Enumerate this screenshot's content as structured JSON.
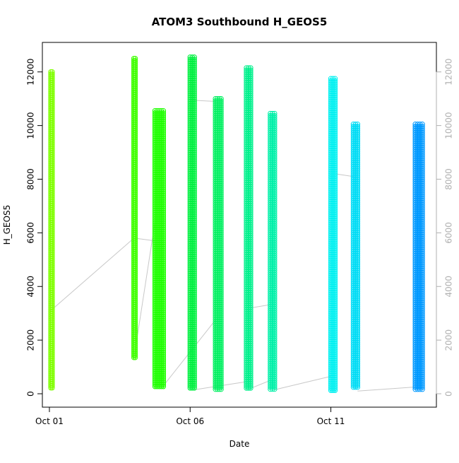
{
  "chart_data": {
    "type": "scatter",
    "title": "ATOM3 Southbound H_GEOS5",
    "xlabel": "Date",
    "ylabel": "H_GEOS5",
    "x_ticks": [
      {
        "label": "Oct 01",
        "value": 1
      },
      {
        "label": "Oct 06",
        "value": 6
      },
      {
        "label": "Oct 11",
        "value": 11
      }
    ],
    "xlim": [
      0.75,
      14.75
    ],
    "y_ticks": [
      0,
      2000,
      4000,
      6000,
      8000,
      10000,
      12000
    ],
    "ylim": [
      -500,
      13100
    ],
    "right_axis": {
      "ticks": [
        0,
        2000,
        4000,
        6000,
        8000,
        10000,
        12000
      ],
      "color": "#b0b0b0"
    },
    "grid": false,
    "legend": "none",
    "connector_color": "#c8c8c8",
    "series": [
      {
        "x": 1.05,
        "x_end": 1.1,
        "y_min": 150,
        "y_max": 12000,
        "color": "#7FFF00"
      },
      {
        "x": 4.0,
        "x_end": 4.05,
        "y_min": 1300,
        "y_max": 12500,
        "color": "#3FFF00"
      },
      {
        "x": 4.75,
        "x_end": 5.05,
        "y_min": 200,
        "y_max": 10550,
        "color": "#1FFF00"
      },
      {
        "x": 6.0,
        "x_end": 6.15,
        "y_min": 150,
        "y_max": 12550,
        "color": "#00F040"
      },
      {
        "x": 6.9,
        "x_end": 7.1,
        "y_min": 150,
        "y_max": 11000,
        "color": "#00F060"
      },
      {
        "x": 8.0,
        "x_end": 8.15,
        "y_min": 150,
        "y_max": 12150,
        "color": "#00F08C"
      },
      {
        "x": 8.85,
        "x_end": 9.0,
        "y_min": 150,
        "y_max": 10450,
        "color": "#00F0A8"
      },
      {
        "x": 11.0,
        "x_end": 11.15,
        "y_min": 50,
        "y_max": 11750,
        "color": "#00F0F0"
      },
      {
        "x": 11.8,
        "x_end": 11.95,
        "y_min": 200,
        "y_max": 10050,
        "color": "#00DCF5"
      },
      {
        "x": 14.0,
        "x_end": 14.25,
        "y_min": 150,
        "y_max": 10050,
        "color": "#0099FF"
      }
    ],
    "connector_lines": [
      {
        "x": [
          1.05,
          4.0
        ],
        "y": [
          3100,
          5800
        ]
      },
      {
        "x": [
          4.05,
          4.75
        ],
        "y": [
          5800,
          5700
        ]
      },
      {
        "x": [
          4.0,
          4.75
        ],
        "y": [
          1300,
          6400
        ]
      },
      {
        "x": [
          5.05,
          6.9
        ],
        "y": [
          300,
          2750
        ]
      },
      {
        "x": [
          6.0,
          6.9
        ],
        "y": [
          10950,
          10900
        ]
      },
      {
        "x": [
          6.15,
          8.0
        ],
        "y": [
          150,
          450
        ]
      },
      {
        "x": [
          8.15,
          8.85
        ],
        "y": [
          200,
          500
        ]
      },
      {
        "x": [
          8.15,
          9.0
        ],
        "y": [
          3200,
          3350
        ]
      },
      {
        "x": [
          9.0,
          11.0
        ],
        "y": [
          150,
          650
        ]
      },
      {
        "x": [
          11.15,
          11.8
        ],
        "y": [
          8200,
          8100
        ]
      },
      {
        "x": [
          11.95,
          14.0
        ],
        "y": [
          100,
          250
        ]
      }
    ]
  }
}
